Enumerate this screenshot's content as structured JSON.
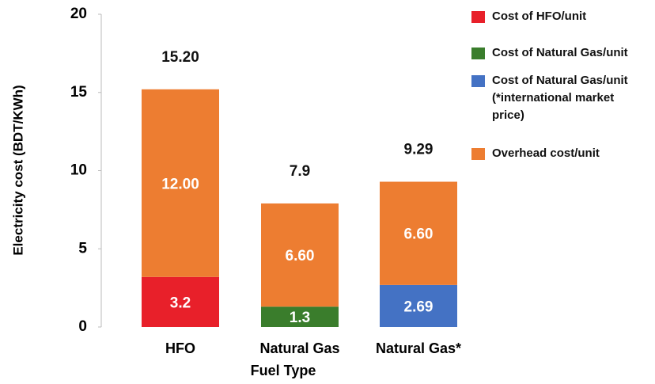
{
  "chart_data": {
    "type": "stacked_bar",
    "x_label": "Fuel Type",
    "y_label": "Electricity cost (BDT/KWh)",
    "categories": [
      "HFO",
      "Natural Gas",
      "Natural Gas*"
    ],
    "series": [
      {
        "name": "Cost of HFO/unit",
        "color": "#e8202a",
        "values": [
          3.2,
          null,
          null
        ]
      },
      {
        "name": "Cost of Natural Gas/unit",
        "color": "#3a7d2c",
        "values": [
          null,
          1.3,
          null
        ]
      },
      {
        "name": "Cost of Natural Gas/unit (*international market price)",
        "color": "#4472c4",
        "values": [
          null,
          null,
          2.69
        ]
      },
      {
        "name": "Overhead cost/unit",
        "color": "#ed7d31",
        "values": [
          12.0,
          6.6,
          6.6
        ],
        "value_labels": [
          "12.00",
          "6.60",
          "6.60"
        ]
      }
    ],
    "totals": [
      15.2,
      7.9,
      9.29
    ],
    "total_labels": [
      "15.20",
      "7.9",
      "9.29"
    ],
    "ylim": [
      0,
      20
    ],
    "yticks": [
      0,
      5,
      10,
      15,
      20
    ],
    "legend": "right"
  }
}
